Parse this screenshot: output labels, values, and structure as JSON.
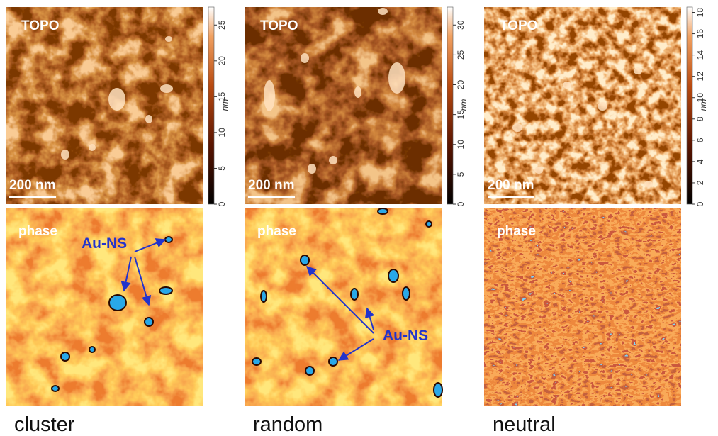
{
  "panels": [
    {
      "topo_label": "TOPO",
      "scale_bar": "200 nm",
      "colorbar": {
        "unit": "nm",
        "range": [
          0,
          27.5
        ],
        "ticks": [
          0,
          5,
          10,
          15,
          20,
          25
        ]
      },
      "phase_label": "phase",
      "annotation": "Au-NS",
      "caption": "cluster"
    },
    {
      "topo_label": "TOPO",
      "scale_bar": "200 nm",
      "colorbar": {
        "unit": "nm",
        "range": [
          0,
          33
        ],
        "ticks": [
          0,
          5,
          10,
          15,
          20,
          25,
          30
        ]
      },
      "phase_label": "phase",
      "annotation": "Au-NS",
      "caption": "random"
    },
    {
      "topo_label": "TOPO",
      "scale_bar": "200 nm",
      "colorbar": {
        "unit": "nm",
        "range": [
          0,
          18.5
        ],
        "ticks": [
          0,
          2,
          4,
          6,
          8,
          10,
          12,
          14,
          16,
          18
        ]
      },
      "phase_label": "phase",
      "caption": "neutral"
    }
  ]
}
